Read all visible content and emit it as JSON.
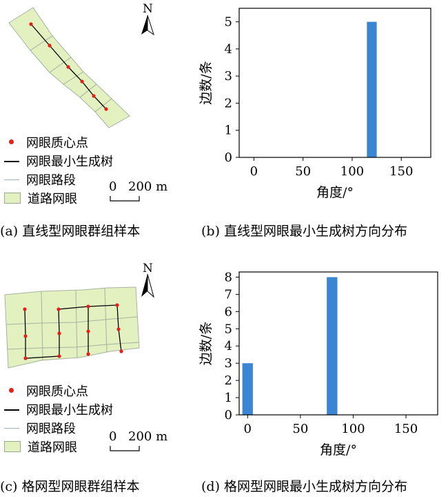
{
  "colors": {
    "bar": "#3b86d3",
    "mesh_fill": "#e3f0c0",
    "mesh_stroke": "#a5b2a0",
    "centroid": "#e32019",
    "mst": "#000000"
  },
  "north_label": "N",
  "legend": {
    "centroid": "网眼质心点",
    "mst": "网眼最小生成树",
    "road": "网眼路段",
    "mesh": "道路网眼"
  },
  "scale": {
    "zero": "0",
    "length": "200 m"
  },
  "captions": {
    "a": "(a) 直线型网眼群组样本",
    "b": "(b) 直线型网眼最小生成树方向分布",
    "c": "(c) 格网型网眼群组样本",
    "d": "(d) 格网型网眼最小生成树方向分布"
  },
  "chart_data": [
    {
      "type": "bar",
      "xlabel": "角度/°",
      "ylabel": "边数/条",
      "x": [
        120
      ],
      "values": [
        5
      ],
      "xlim": [
        -15,
        180
      ],
      "ylim": [
        0,
        5.5
      ],
      "xticks": [
        0,
        50,
        100,
        150
      ],
      "yticks": [
        0,
        1,
        2,
        3,
        4,
        5
      ],
      "bar_width_deg": 10,
      "grid": false
    },
    {
      "type": "bar",
      "xlabel": "角度/°",
      "ylabel": "边数/条",
      "x": [
        0,
        80
      ],
      "values": [
        3,
        8
      ],
      "xlim": [
        -8,
        180
      ],
      "ylim": [
        0,
        8.3
      ],
      "xticks": [
        0,
        50,
        100,
        150
      ],
      "yticks": [
        0,
        1,
        2,
        3,
        4,
        5,
        6,
        7,
        8
      ],
      "bar_width_deg": 10,
      "grid": false
    }
  ]
}
